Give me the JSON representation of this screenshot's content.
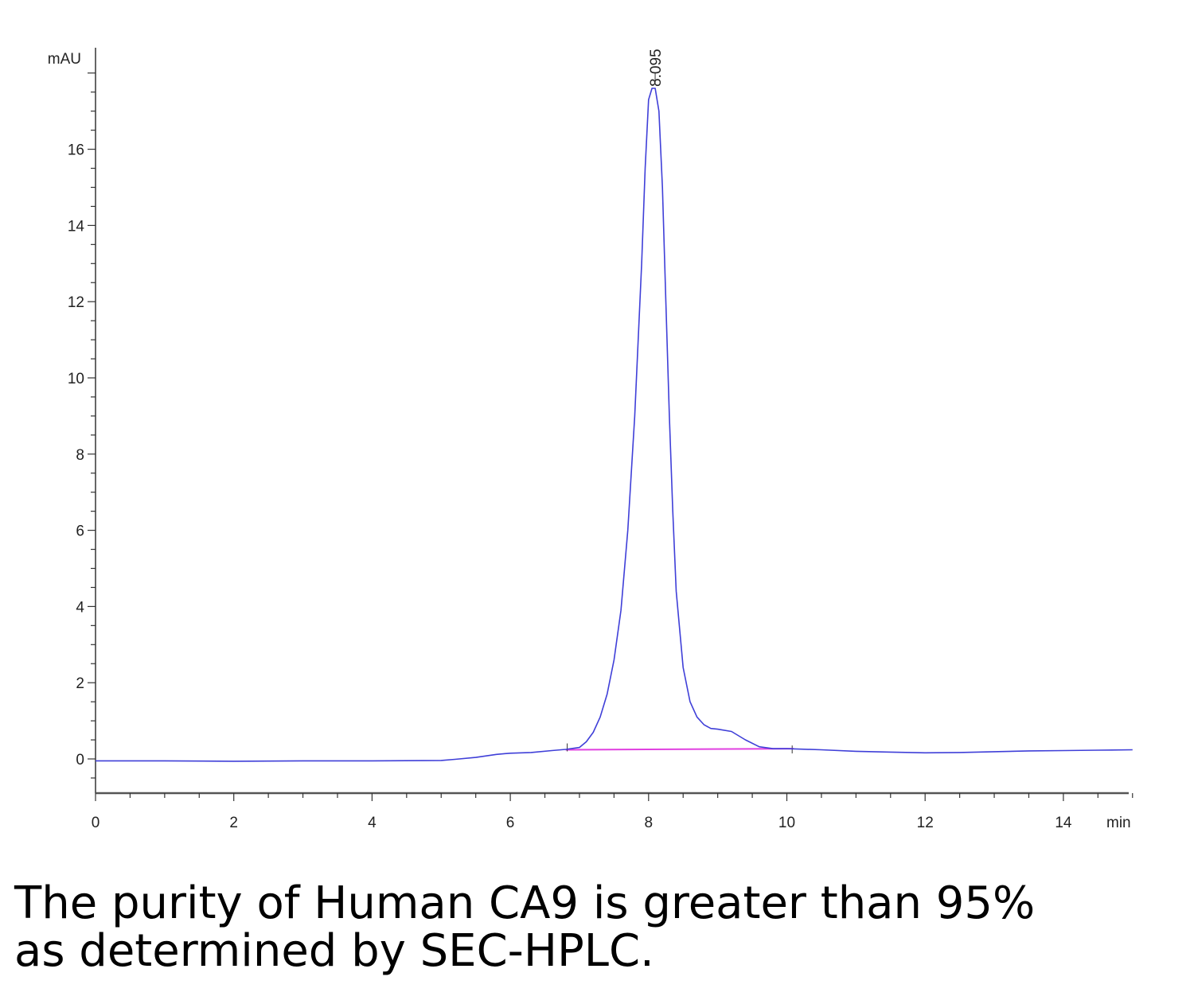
{
  "chart_data": {
    "type": "line",
    "title": "",
    "xlabel": "",
    "ylabel": "",
    "x_unit": "min",
    "y_unit": "mAU",
    "xlim": [
      0,
      15
    ],
    "ylim": [
      -0.9,
      18.5
    ],
    "x_ticks": [
      0,
      2,
      4,
      6,
      8,
      10,
      12,
      14
    ],
    "y_ticks": [
      0,
      2,
      4,
      6,
      8,
      10,
      12,
      14,
      16
    ],
    "grid": false,
    "legend": "none",
    "colors": {
      "signal": "#3f3fd8",
      "baseline": "#e040e0",
      "axis": "#333333"
    },
    "peak": {
      "label": "8.095",
      "x": 8.095,
      "y": 17.6
    },
    "series": [
      {
        "x": [
          0,
          1,
          2,
          3,
          4,
          5,
          5.2,
          5.5,
          5.8,
          6.0,
          6.3,
          6.6,
          6.8,
          7.0,
          7.1,
          7.2,
          7.3,
          7.4,
          7.5,
          7.6,
          7.7,
          7.8,
          7.9,
          7.95,
          8.0,
          8.05,
          8.095,
          8.15,
          8.2,
          8.25,
          8.3,
          8.35,
          8.4,
          8.5,
          8.6,
          8.7,
          8.8,
          8.9,
          9.0,
          9.2,
          9.4,
          9.6,
          9.8,
          10.0,
          10.5,
          11,
          11.5,
          12,
          12.5,
          13,
          13.5,
          14,
          14.5,
          15
        ],
        "y": [
          -0.05,
          -0.05,
          -0.06,
          -0.05,
          -0.05,
          -0.04,
          -0.01,
          0.04,
          0.12,
          0.15,
          0.17,
          0.22,
          0.25,
          0.3,
          0.45,
          0.7,
          1.1,
          1.7,
          2.6,
          3.9,
          6.0,
          9.0,
          13.0,
          15.5,
          17.3,
          17.6,
          17.6,
          17.0,
          15.0,
          12.0,
          9.0,
          6.5,
          4.4,
          2.4,
          1.5,
          1.1,
          0.9,
          0.8,
          0.78,
          0.72,
          0.5,
          0.32,
          0.27,
          0.27,
          0.24,
          0.2,
          0.18,
          0.16,
          0.17,
          0.19,
          0.21,
          0.22,
          0.23,
          0.24
        ]
      }
    ],
    "integration_baseline": {
      "x": [
        6.8,
        10.1
      ],
      "y": [
        0.24,
        0.27
      ]
    }
  },
  "caption": {
    "line1": "The purity of Human CA9 is greater than 95%",
    "line2": "as determined by SEC-HPLC."
  }
}
